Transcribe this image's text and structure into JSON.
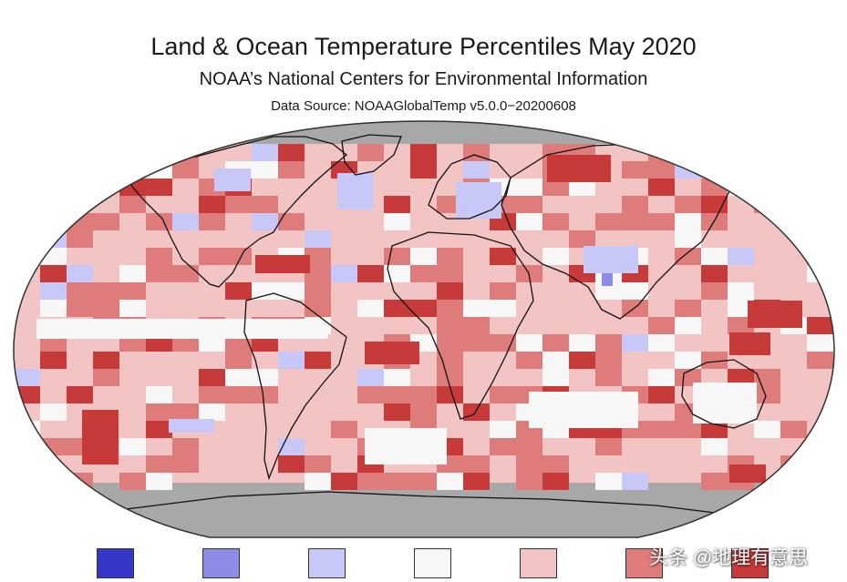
{
  "header": {
    "title": "Land & Ocean Temperature Percentiles May 2020",
    "subtitle": "NOAA’s National Centers for Environmental Information",
    "source": "Data Source: NOAAGlobalTemp v5.0.0−20200608"
  },
  "legend": {
    "colors": [
      "#3535c8",
      "#8c8ce6",
      "#c8c8f8",
      "#f7f7f7",
      "#f2c4c4",
      "#de7b7b",
      "#c63a3a"
    ]
  },
  "palette": {
    "no_data": "#a8a8a8",
    "white": "#f7f7f7",
    "light_blue": "#c8c8f8",
    "mid_blue": "#8c8ce6",
    "light_red": "#f2c4c4",
    "mid_red": "#de7b7b",
    "dark_red": "#c63a3a"
  },
  "watermark": {
    "text": "头条 @地理有意思"
  }
}
